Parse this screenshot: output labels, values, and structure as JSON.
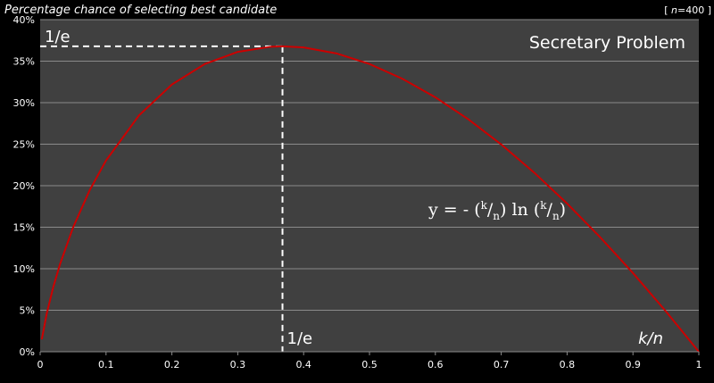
{
  "chart_data": {
    "type": "line",
    "title": "Percentage chance of selecting best candidate",
    "n_label_prefix": "[ ",
    "n_label_var": "n",
    "n_label_suffix": "=400 ]",
    "inner_title": "Secretary Problem",
    "xlabel": "k/n",
    "formula": {
      "lead": "y = - (",
      "k1": "k",
      "slash1": "/",
      "n1": "n",
      "mid": ") ln (",
      "k2": "k",
      "slash2": "/",
      "n2": "n",
      "close": ")"
    },
    "xlim": [
      0,
      1
    ],
    "ylim": [
      0,
      40
    ],
    "x_ticks": [
      "0",
      "0.1",
      "0.2",
      "0.3",
      "0.4",
      "0.5",
      "0.6",
      "0.7",
      "0.8",
      "0.9",
      "1"
    ],
    "y_ticks": [
      "0%",
      "5%",
      "10%",
      "15%",
      "20%",
      "25%",
      "30%",
      "35%",
      "40%"
    ],
    "series": [
      {
        "x": [
          0.0025,
          0.01,
          0.02,
          0.03,
          0.05,
          0.075,
          0.1,
          0.15,
          0.2,
          0.25,
          0.3,
          0.35,
          0.3679,
          0.4,
          0.45,
          0.5,
          0.55,
          0.6,
          0.65,
          0.7,
          0.75,
          0.8,
          0.85,
          0.9,
          0.95,
          1.0
        ],
        "y": [
          1.5,
          4.61,
          7.82,
          10.52,
          14.98,
          19.43,
          23.03,
          28.46,
          32.19,
          34.66,
          36.12,
          36.74,
          36.79,
          36.65,
          35.93,
          34.66,
          32.88,
          30.65,
          28.0,
          24.97,
          21.58,
          17.85,
          13.81,
          9.48,
          4.87,
          0.0
        ]
      }
    ],
    "marker": {
      "x": 0.3679,
      "y": 36.79,
      "label_x": "1/e",
      "label_y": "1/e"
    },
    "grid": true,
    "colors": {
      "background": "#404040",
      "line": "#cc0000",
      "grid": "#8a8a8a",
      "text": "#ffffff"
    }
  }
}
